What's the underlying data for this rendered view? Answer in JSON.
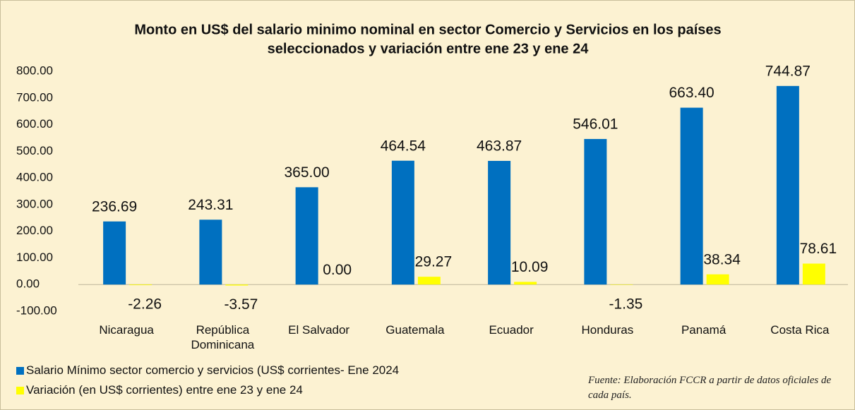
{
  "chart_data": {
    "type": "bar",
    "title": [
      "Monto en US$ del salario minimo nominal  en sector Comercio y Servicios en los países",
      "seleccionados  y variación entre ene 23 y ene 24"
    ],
    "categories": [
      "Nicaragua",
      "República Dominicana",
      "El Salvador",
      "Guatemala",
      "Ecuador",
      "Honduras",
      "Panamá",
      "Costa Rica"
    ],
    "series": [
      {
        "name": "Salario Mínimo sector comercio y servicios (US$ corrientes- Ene 2024",
        "color": "#0070c0",
        "values": [
          236.69,
          243.31,
          365,
          464.54,
          463.87,
          546.01,
          663.4,
          744.87
        ],
        "value_labels": [
          "236.69",
          "243.31",
          "365.00",
          "464.54",
          "463.87",
          "546.01",
          "663.40",
          "744.87"
        ]
      },
      {
        "name": "Variación (en US$ corrientes) entre ene 23 y ene 24",
        "color": "#ffff00",
        "values": [
          -2.26,
          -3.57,
          0,
          29.27,
          10.09,
          -1.35,
          38.34,
          78.61
        ],
        "value_labels": [
          "-2.26",
          "-3.57",
          "0.00",
          "29.27",
          "10.09",
          "-1.35",
          "38.34",
          "78.61"
        ]
      }
    ],
    "ylim": [
      -100,
      800
    ],
    "yticks": [
      {
        "value": -100,
        "label": "-100.00"
      },
      {
        "value": 0,
        "label": "0.00"
      },
      {
        "value": 100,
        "label": "100.00"
      },
      {
        "value": 200,
        "label": "200.00"
      },
      {
        "value": 300,
        "label": "300.00"
      },
      {
        "value": 400,
        "label": "400.00"
      },
      {
        "value": 500,
        "label": "500.00"
      },
      {
        "value": 600,
        "label": "600.00"
      },
      {
        "value": 700,
        "label": "700.00"
      },
      {
        "value": 800,
        "label": "800.00"
      }
    ],
    "grid": false,
    "annotation": "Fuente: Elaboración FCCR a partir de datos oficiales de cada país."
  }
}
